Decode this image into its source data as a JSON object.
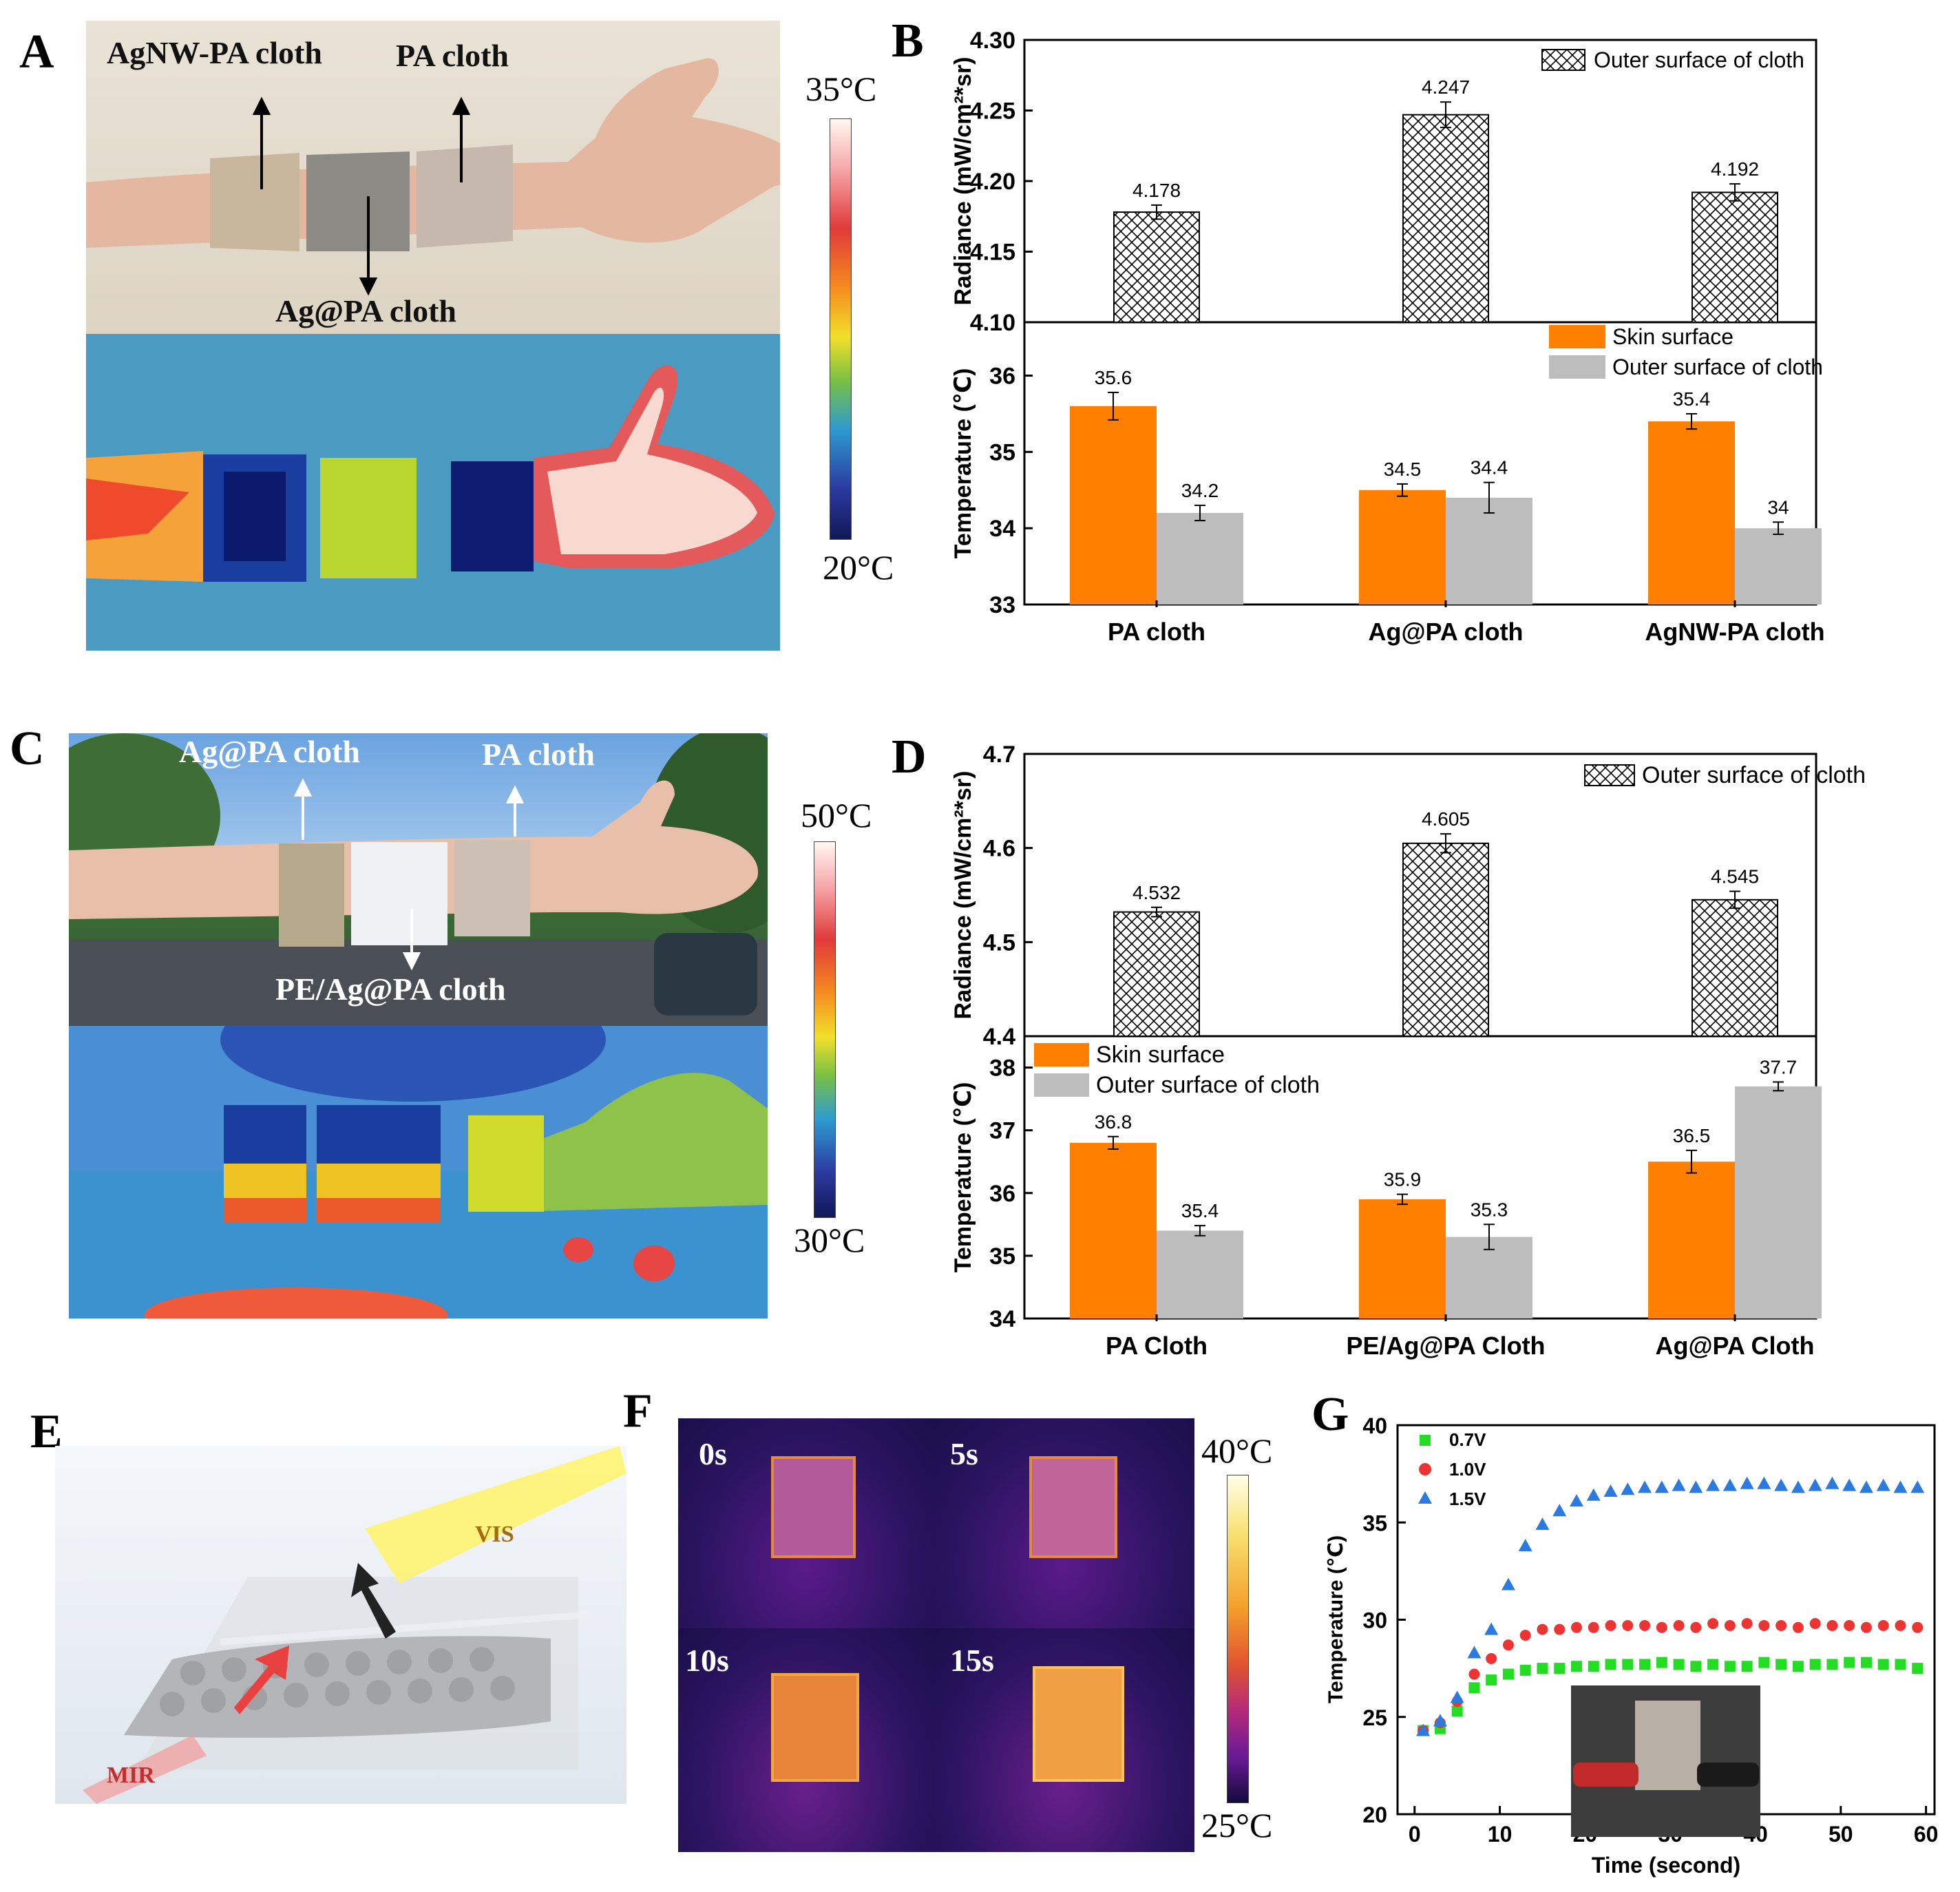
{
  "panels": {
    "a": "A",
    "b": "B",
    "c": "C",
    "d": "D",
    "e": "E",
    "f": "F",
    "g": "G"
  },
  "panel_a": {
    "labels": [
      "AgNW-PA cloth",
      "PA cloth",
      "Ag@PA cloth"
    ],
    "scale": {
      "max": "35°C",
      "min": "20°C"
    }
  },
  "panel_c": {
    "labels": [
      "Ag@PA cloth",
      "PA cloth",
      "PE/Ag@PA cloth"
    ],
    "scale": {
      "max": "50°C",
      "min": "30°C"
    }
  },
  "panel_e": {
    "vis": "VIS",
    "mir": "MIR"
  },
  "panel_f": {
    "times": [
      "0s",
      "5s",
      "10s",
      "15s"
    ],
    "scale": {
      "max": "40°C",
      "min": "25°C"
    }
  },
  "chart_data": [
    {
      "id": "B-top",
      "type": "bar",
      "ylabel": "Radiance (mW/cm²*sr)",
      "ylim": [
        4.1,
        4.3
      ],
      "yticks": [
        "4.10",
        "4.15",
        "4.20",
        "4.25",
        "4.30"
      ],
      "legend": [
        "Outer surface of cloth"
      ],
      "series": [
        {
          "name": "Outer surface of cloth",
          "values": [
            4.178,
            4.247,
            4.192
          ],
          "labels": [
            "4.178",
            "4.247",
            "4.192"
          ],
          "err": [
            0.005,
            0.009,
            0.006
          ]
        }
      ]
    },
    {
      "id": "B-bottom",
      "type": "bar",
      "ylabel": "Temperature (℃)",
      "categories": [
        "PA cloth",
        "Ag@PA cloth",
        "AgNW-PA cloth"
      ],
      "ylim": [
        33,
        36.7
      ],
      "yticks": [
        "33",
        "34",
        "35",
        "36"
      ],
      "legend": [
        "Skin surface",
        "Outer surface of cloth"
      ],
      "series": [
        {
          "name": "Skin surface",
          "values": [
            35.6,
            34.5,
            35.4
          ],
          "labels": [
            "35.6",
            "34.5",
            "35.4"
          ],
          "err": [
            0.18,
            0.08,
            0.1
          ],
          "color": "#ff7f00"
        },
        {
          "name": "Outer surface of cloth",
          "values": [
            34.2,
            34.4,
            34.0
          ],
          "labels": [
            "34.2",
            "34.4",
            "34"
          ],
          "err": [
            0.1,
            0.2,
            0.08
          ],
          "color": "#bdbdbd"
        }
      ]
    },
    {
      "id": "D-top",
      "type": "bar",
      "ylabel": "Radiance (mW/cm²*sr)",
      "ylim": [
        4.4,
        4.7
      ],
      "yticks": [
        "4.4",
        "4.5",
        "4.6",
        "4.7"
      ],
      "legend": [
        "Outer surface of cloth"
      ],
      "series": [
        {
          "name": "Outer surface of cloth",
          "values": [
            4.532,
            4.605,
            4.545
          ],
          "labels": [
            "4.532",
            "4.605",
            "4.545"
          ],
          "err": [
            0.005,
            0.01,
            0.009
          ]
        }
      ]
    },
    {
      "id": "D-bottom",
      "type": "bar",
      "ylabel": "Temperature (℃)",
      "categories": [
        "PA Cloth",
        "PE/Ag@PA Cloth",
        "Ag@PA Cloth"
      ],
      "ylim": [
        34,
        38.5
      ],
      "yticks": [
        "34",
        "35",
        "36",
        "37",
        "38"
      ],
      "legend": [
        "Skin surface",
        "Outer surface of cloth"
      ],
      "series": [
        {
          "name": "Skin surface",
          "values": [
            36.8,
            35.9,
            36.5
          ],
          "labels": [
            "36.8",
            "35.9",
            "36.5"
          ],
          "err": [
            0.1,
            0.08,
            0.18
          ],
          "color": "#ff7f00"
        },
        {
          "name": "Outer surface of cloth",
          "values": [
            35.4,
            35.3,
            37.7
          ],
          "labels": [
            "35.4",
            "35.3",
            "37.7"
          ],
          "err": [
            0.08,
            0.2,
            0.07
          ],
          "color": "#bdbdbd"
        }
      ]
    },
    {
      "id": "G",
      "type": "scatter",
      "xlabel": "Time (second)",
      "ylabel": "Temperature (℃)",
      "xlim": [
        -2,
        61
      ],
      "ylim": [
        20,
        40
      ],
      "xticks": [
        "0",
        "10",
        "20",
        "30",
        "40",
        "50",
        "60"
      ],
      "yticks": [
        "20",
        "25",
        "30",
        "35",
        "40"
      ],
      "x": [
        1,
        3,
        5,
        7,
        9,
        11,
        13,
        15,
        17,
        19,
        21,
        23,
        25,
        27,
        29,
        31,
        33,
        35,
        37,
        39,
        41,
        43,
        45,
        47,
        49,
        51,
        53,
        55,
        57,
        59
      ],
      "series": [
        {
          "name": "0.7V",
          "color": "#22dd22",
          "marker": "square",
          "values": [
            24.3,
            24.4,
            25.3,
            26.5,
            26.9,
            27.2,
            27.4,
            27.5,
            27.5,
            27.6,
            27.6,
            27.7,
            27.7,
            27.7,
            27.8,
            27.7,
            27.6,
            27.7,
            27.6,
            27.6,
            27.8,
            27.7,
            27.6,
            27.7,
            27.7,
            27.8,
            27.8,
            27.7,
            27.7,
            27.5
          ]
        },
        {
          "name": "1.0V",
          "color": "#ee3333",
          "marker": "circle",
          "values": [
            24.3,
            24.7,
            25.8,
            27.2,
            28.0,
            28.7,
            29.2,
            29.5,
            29.5,
            29.6,
            29.6,
            29.7,
            29.7,
            29.7,
            29.6,
            29.7,
            29.6,
            29.8,
            29.7,
            29.8,
            29.7,
            29.7,
            29.6,
            29.8,
            29.7,
            29.7,
            29.6,
            29.7,
            29.7,
            29.6
          ]
        },
        {
          "name": "1.5V",
          "color": "#2a7ae0",
          "marker": "triangle",
          "values": [
            24.3,
            24.8,
            26.0,
            28.3,
            29.5,
            31.8,
            33.8,
            34.9,
            35.6,
            36.1,
            36.4,
            36.6,
            36.7,
            36.8,
            36.8,
            36.9,
            36.8,
            36.9,
            36.9,
            37.0,
            37.0,
            36.9,
            36.8,
            36.9,
            37.0,
            36.9,
            36.8,
            36.9,
            36.8,
            36.8
          ]
        }
      ]
    }
  ]
}
